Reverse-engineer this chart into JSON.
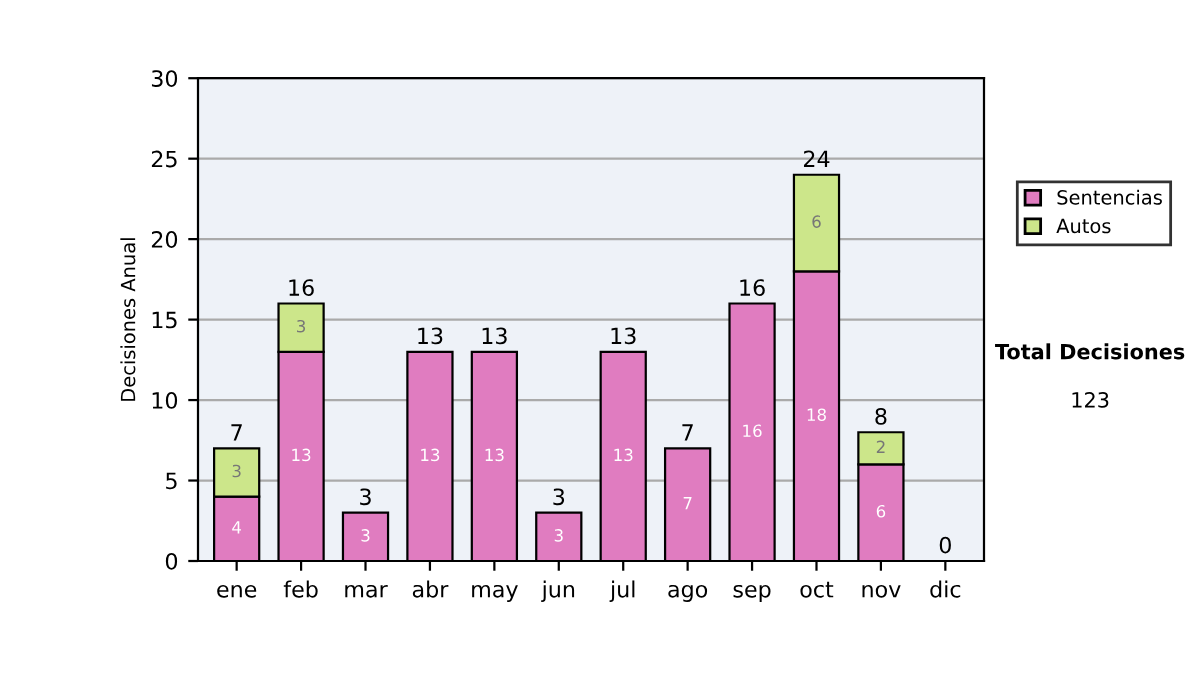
{
  "chart_data": {
    "type": "bar",
    "stacked": true,
    "ylabel": "Decisiones Anual",
    "categories": [
      "ene",
      "feb",
      "mar",
      "abr",
      "may",
      "jun",
      "jul",
      "ago",
      "sep",
      "oct",
      "nov",
      "dic"
    ],
    "series": [
      {
        "name": "Sentencias",
        "color": "#e07cc0",
        "values": [
          4,
          13,
          3,
          13,
          13,
          3,
          13,
          7,
          16,
          18,
          6,
          0
        ],
        "value_labels": [
          "4",
          "13",
          "3",
          "13",
          "13",
          "3",
          "13",
          "7",
          "16",
          "18",
          "6",
          null
        ]
      },
      {
        "name": "Autos",
        "color": "#cce68a",
        "values": [
          3,
          3,
          0,
          0,
          0,
          0,
          0,
          0,
          0,
          6,
          2,
          0
        ],
        "value_labels": [
          "3",
          "3",
          null,
          null,
          null,
          null,
          null,
          null,
          null,
          "6",
          "2",
          null
        ]
      }
    ],
    "totals": [
      "7",
      "16",
      "3",
      "13",
      "13",
      "3",
      "13",
      "7",
      "16",
      "24",
      "8",
      "0"
    ],
    "ylim": [
      0,
      30
    ],
    "yticks": [
      0,
      5,
      10,
      15,
      20,
      25,
      30
    ],
    "grid": "y",
    "legend": "right",
    "annotations": [
      "Total Decisiones",
      "123"
    ]
  }
}
